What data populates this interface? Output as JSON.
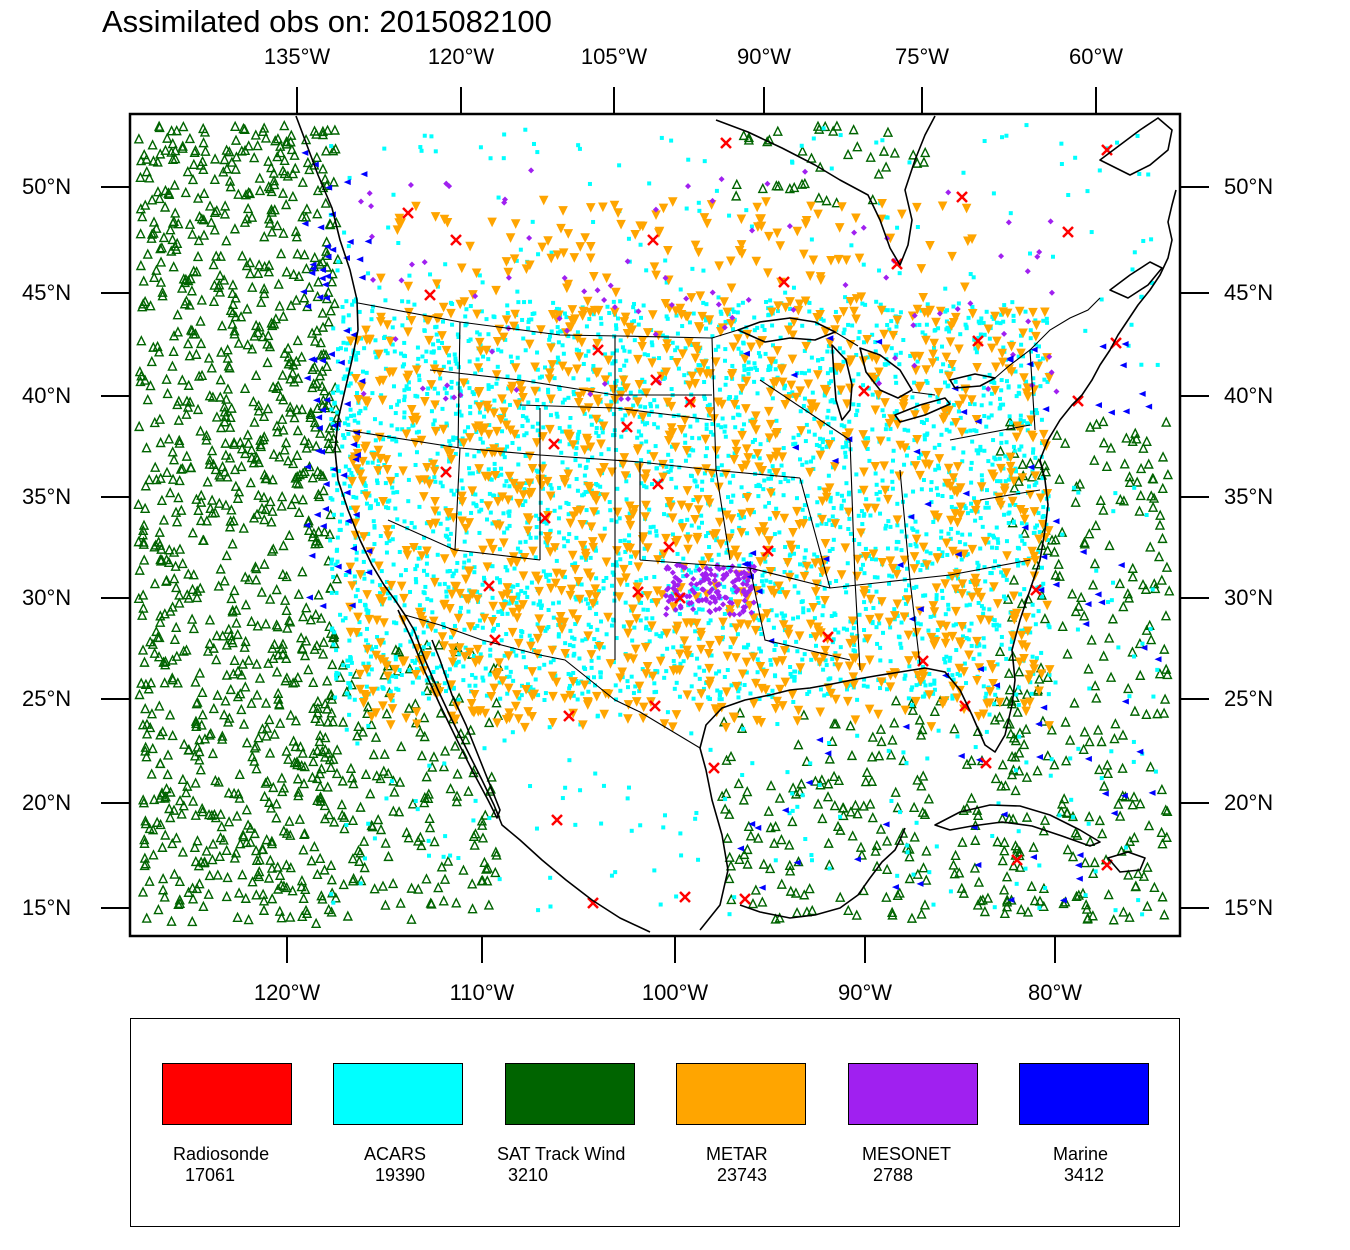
{
  "title": "Assimilated obs on: 2015082100",
  "top_axis_labels": [
    "135°W",
    "120°W",
    "105°W",
    "90°W",
    "75°W",
    "60°W"
  ],
  "bottom_axis_labels": [
    "120°W",
    "110°W",
    "100°W",
    "90°W",
    "80°W"
  ],
  "left_axis_labels": [
    "50°N",
    "45°N",
    "40°N",
    "35°N",
    "30°N",
    "25°N",
    "20°N",
    "15°N"
  ],
  "right_axis_labels": [
    "50°N",
    "45°N",
    "40°N",
    "35°N",
    "30°N",
    "25°N",
    "20°N",
    "15°N"
  ],
  "legend": [
    {
      "name": "Radiosonde",
      "count": "17061",
      "color": "#ff0000"
    },
    {
      "name": "ACARS",
      "count": "19390",
      "color": "#00ffff"
    },
    {
      "name": "SAT Track Wind",
      "count": "3210",
      "color": "#006400"
    },
    {
      "name": "METAR",
      "count": "23743",
      "color": "#ffa500"
    },
    {
      "name": "MESONET",
      "count": "2788",
      "color": "#a020f0"
    },
    {
      "name": "Marine",
      "count": "3412",
      "color": "#0000ff"
    }
  ],
  "colors": {
    "coast": "#000000",
    "frame": "#000000"
  }
}
